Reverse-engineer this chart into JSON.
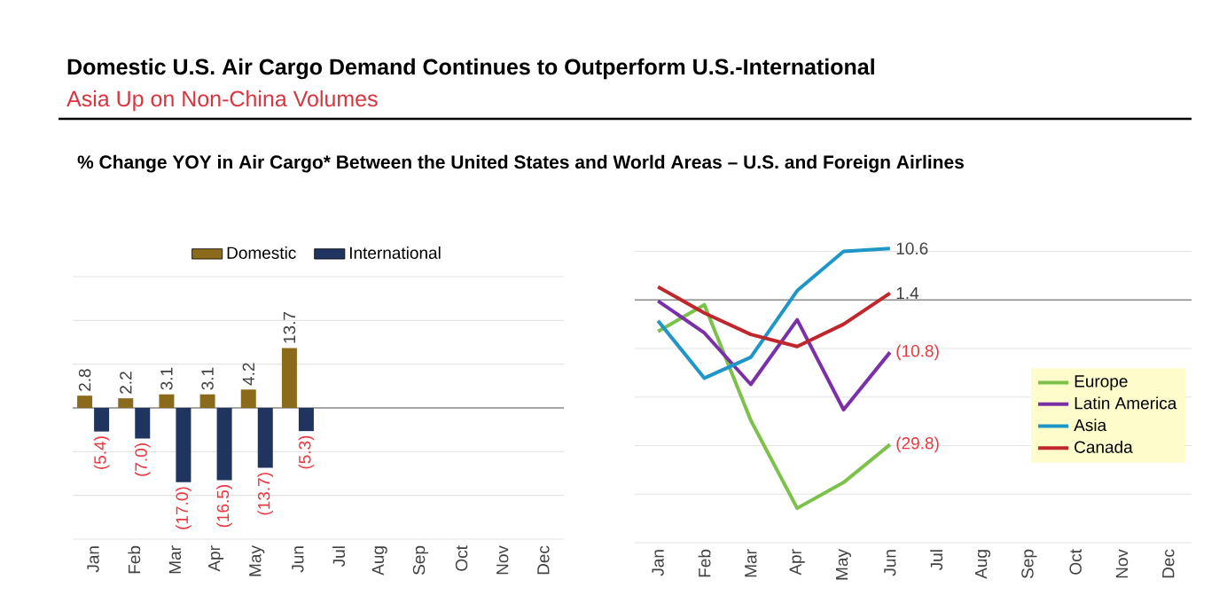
{
  "chart_data": [
    {
      "type": "bar",
      "title": "Domestic U.S. Air Cargo Demand Continues to Outperform U.S.-International",
      "subtitle": "Asia Up on Non-China Volumes",
      "annotations": [
        "% Change YOY in Air Cargo* Between the United States and World Areas – U.S. and Foreign Airlines"
      ],
      "categories": [
        "Jan",
        "Feb",
        "Mar",
        "Apr",
        "May",
        "Jun",
        "Jul",
        "Aug",
        "Sep",
        "Oct",
        "Nov",
        "Dec"
      ],
      "series": [
        {
          "name": "Domestic",
          "color": "#8c6a1c",
          "values": [
            2.8,
            2.2,
            3.1,
            3.1,
            4.2,
            13.7,
            null,
            null,
            null,
            null,
            null,
            null
          ],
          "value_labels": [
            "2.8",
            "2.2",
            "3.1",
            "3.1",
            "4.2",
            "13.7",
            null,
            null,
            null,
            null,
            null,
            null
          ]
        },
        {
          "name": "International",
          "color": "#1f3560",
          "values": [
            -5.4,
            -7.0,
            -17.0,
            -16.5,
            -13.7,
            -5.3,
            null,
            null,
            null,
            null,
            null,
            null
          ],
          "value_labels": [
            "(5.4)",
            "(7.0)",
            "(17.0)",
            "(16.5)",
            "(13.7)",
            "(5.3)",
            null,
            null,
            null,
            null,
            null,
            null
          ]
        }
      ],
      "ylim": [
        -30,
        30
      ],
      "yticks": [
        {
          "value": -30,
          "label": null
        },
        {
          "value": -20,
          "label": null
        },
        {
          "value": -10,
          "label": null
        },
        {
          "value": 0,
          "label": null
        },
        {
          "value": 10,
          "label": null
        },
        {
          "value": 20,
          "label": null
        },
        {
          "value": 30,
          "label": null
        }
      ],
      "grid": "y",
      "legend": "top",
      "tick_labels": "x"
    },
    {
      "type": "line",
      "categories": [
        "Jan",
        "Feb",
        "Mar",
        "Apr",
        "May",
        "Jun",
        "Jul",
        "Aug",
        "Sep",
        "Oct",
        "Nov",
        "Dec"
      ],
      "series": [
        {
          "name": "Europe",
          "color": "#7cc24a",
          "values": [
            -6.5,
            -1.0,
            -24.8,
            -42.9,
            -37.6,
            -29.8,
            null,
            null,
            null,
            null,
            null,
            null
          ],
          "value_labels": [
            null,
            null,
            null,
            null,
            null,
            "(29.8)",
            null,
            null,
            null,
            null,
            null,
            null
          ]
        },
        {
          "name": "Latin America",
          "color": "#7a30a8",
          "values": [
            -0.2,
            -6.8,
            -17.4,
            -4.1,
            -22.6,
            -10.8,
            null,
            null,
            null,
            null,
            null,
            null
          ],
          "value_labels": [
            null,
            null,
            null,
            null,
            null,
            "(10.8)",
            null,
            null,
            null,
            null,
            null,
            null
          ]
        },
        {
          "name": "Asia",
          "color": "#1f96c8",
          "values": [
            -4.3,
            -16.1,
            -11.8,
            1.9,
            10.0,
            10.6,
            null,
            null,
            null,
            null,
            null,
            null
          ],
          "value_labels": [
            null,
            null,
            null,
            null,
            null,
            "10.6",
            null,
            null,
            null,
            null,
            null,
            null
          ]
        },
        {
          "name": "Canada",
          "color": "#c0272d",
          "values": [
            2.7,
            -2.7,
            -7.1,
            -9.6,
            -5.0,
            1.4,
            null,
            null,
            null,
            null,
            null,
            null
          ],
          "value_labels": [
            null,
            null,
            null,
            null,
            null,
            "1.4",
            null,
            null,
            null,
            null,
            null,
            null
          ]
        }
      ],
      "ylim": [
        -50,
        11
      ],
      "yticks": [
        {
          "value": -50,
          "label": null
        },
        {
          "value": -40,
          "label": null
        },
        {
          "value": -30,
          "label": null
        },
        {
          "value": -20,
          "label": null
        },
        {
          "value": -10,
          "label": null
        },
        {
          "value": 0,
          "label": null
        },
        {
          "value": 10,
          "label": null
        }
      ],
      "grid": "y",
      "legend": "right",
      "tick_labels": "x"
    }
  ]
}
